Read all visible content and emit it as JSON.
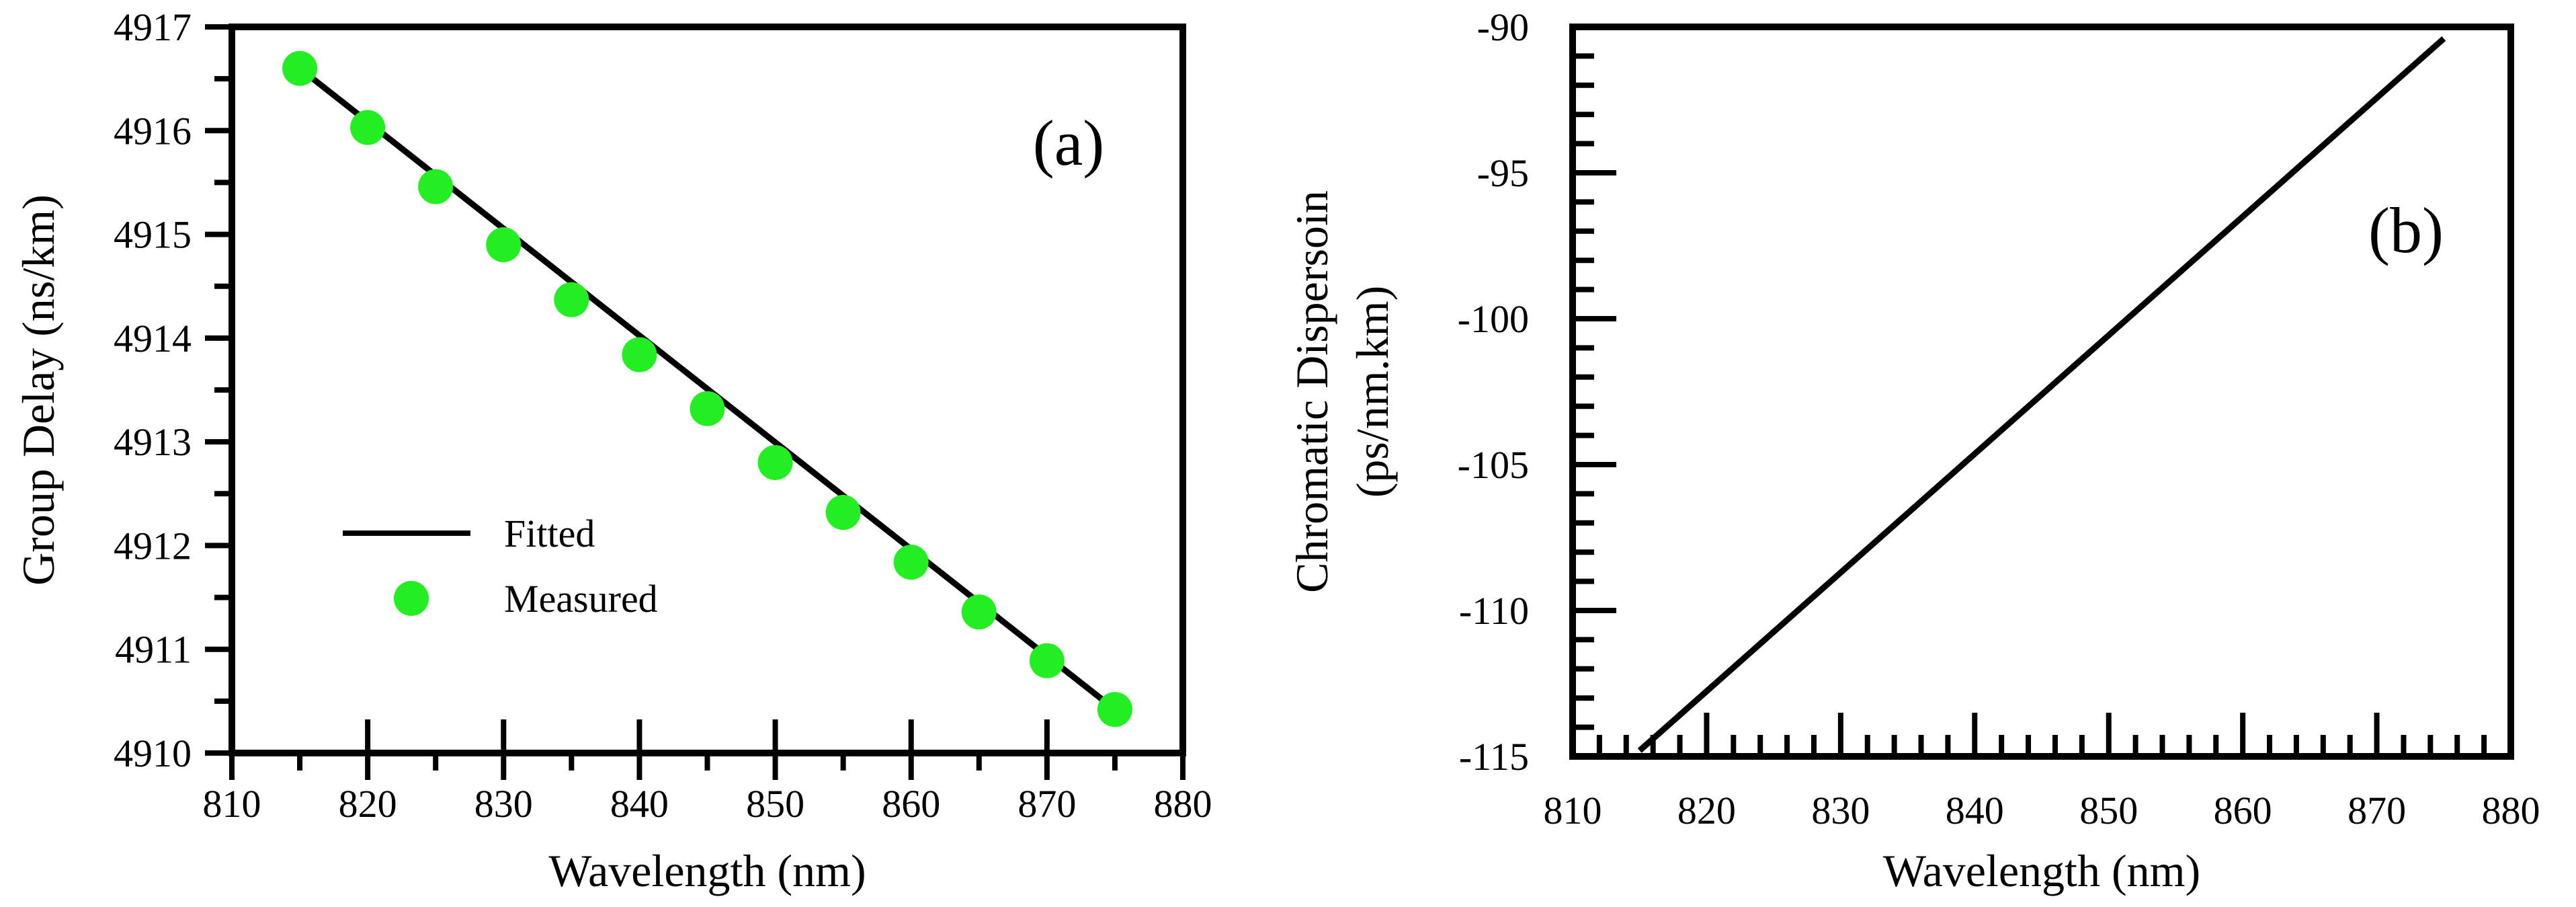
{
  "chart_data": [
    {
      "type": "line",
      "panel_label": "(a)",
      "xlabel": "Wavelength (nm)",
      "ylabel": "Group Delay (ns/km)",
      "xlim": [
        810,
        880
      ],
      "ylim": [
        4910,
        4917
      ],
      "xticks": [
        810,
        820,
        830,
        840,
        850,
        860,
        870,
        880
      ],
      "yticks": [
        4910,
        4911,
        4912,
        4913,
        4914,
        4915,
        4916,
        4917
      ],
      "grid": false,
      "legend_position": "lower-left",
      "series": [
        {
          "name": "Fitted",
          "style": "line",
          "color": "#000000",
          "x": [
            815,
            875
          ],
          "y": [
            4916.6,
            4910.42
          ]
        },
        {
          "name": "Measured",
          "style": "marker",
          "color": "#22EE22",
          "x": [
            815,
            820,
            825,
            830,
            835,
            840,
            845,
            850,
            855,
            860,
            865,
            870,
            875
          ],
          "y": [
            4916.6,
            4916.03,
            4915.46,
            4914.9,
            4914.37,
            4913.84,
            4913.32,
            4912.8,
            4912.32,
            4911.84,
            4911.36,
            4910.89,
            4910.42
          ]
        }
      ]
    },
    {
      "type": "line",
      "panel_label": "(b)",
      "xlabel": "Wavelength (nm)",
      "ylabel_line1": "Chromatic Dispersoin",
      "ylabel_line2": "(ps/nm.km)",
      "xlim": [
        810,
        880
      ],
      "ylim": [
        -115,
        -90
      ],
      "xticks": [
        810,
        820,
        830,
        840,
        850,
        860,
        870,
        880
      ],
      "yticks": [
        -115,
        -110,
        -105,
        -100,
        -95,
        -90
      ],
      "grid": false,
      "series": [
        {
          "name": "Chromatic Dispersion",
          "style": "line",
          "color": "#000000",
          "x": [
            815,
            875
          ],
          "y": [
            -114.8,
            -90.4
          ]
        }
      ]
    }
  ]
}
